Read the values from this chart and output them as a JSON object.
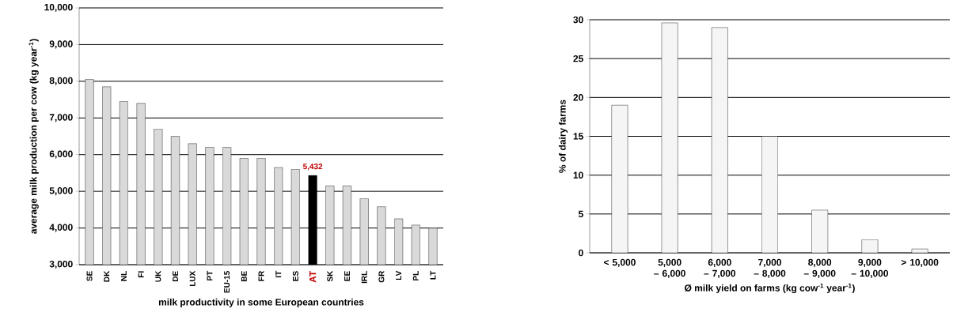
{
  "chart_data": [
    {
      "type": "bar",
      "xlabel": "milk productivity in some European countries",
      "ylabel": "average milk production per cow (kg year$^{-1}$)",
      "categories": [
        "SE",
        "DK",
        "NL",
        "FI",
        "UK",
        "DE",
        "LUX",
        "PT",
        "EU-15",
        "BE",
        "FR",
        "IT",
        "ES",
        "AT",
        "SK",
        "EE",
        "IRL",
        "GR",
        "LV",
        "PL",
        "LT"
      ],
      "values": [
        8050,
        7850,
        7450,
        7400,
        6700,
        6500,
        6300,
        6200,
        6200,
        5900,
        5900,
        5650,
        5600,
        5432,
        5150,
        5150,
        4800,
        4580,
        4250,
        4080,
        4000
      ],
      "colors": [
        "#d9d9d9",
        "#d9d9d9",
        "#d9d9d9",
        "#d9d9d9",
        "#d9d9d9",
        "#d9d9d9",
        "#d9d9d9",
        "#d9d9d9",
        "#d9d9d9",
        "#d9d9d9",
        "#d9d9d9",
        "#d9d9d9",
        "#d9d9d9",
        "#000000",
        "#d9d9d9",
        "#d9d9d9",
        "#d9d9d9",
        "#d9d9d9",
        "#d9d9d9",
        "#d9d9d9",
        "#d9d9d9"
      ],
      "value_labels": [
        null,
        null,
        null,
        null,
        null,
        null,
        null,
        null,
        null,
        null,
        null,
        null,
        null,
        "5,432",
        null,
        null,
        null,
        null,
        null,
        null,
        null
      ],
      "ylim": [
        3000,
        10000
      ],
      "yticks": [
        {
          "value": 3000,
          "label": "3,000"
        },
        {
          "value": 4000,
          "label": "4,000"
        },
        {
          "value": 5000,
          "label": "5,000"
        },
        {
          "value": 6000,
          "label": "6,000"
        },
        {
          "value": 7000,
          "label": "7,000"
        },
        {
          "value": 8000,
          "label": "8,000"
        },
        {
          "value": 9000,
          "label": "9,000"
        },
        {
          "value": 10000,
          "label": "10,000"
        }
      ],
      "grid": "y"
    },
    {
      "type": "bar",
      "xlabel": "Ø milk yield on farms (kg cow$^{-1}$ year$^{-1}$)",
      "ylabel": "% of dairy farms",
      "categories": [
        "< 5,000",
        "5,000 – 6,000",
        "6,000 – 7,000",
        "7,000 – 8,000",
        "8,000 – 9,000",
        "9,000 – 10,000",
        "> 10,000"
      ],
      "values": [
        19,
        29.6,
        29,
        15,
        5.5,
        1.7,
        0.5
      ],
      "colors": [
        "#f5f5f5",
        "#f5f5f5",
        "#f5f5f5",
        "#f5f5f5",
        "#f5f5f5",
        "#f5f5f5",
        "#f5f5f5"
      ],
      "ylim": [
        0,
        30
      ],
      "yticks": [
        0,
        5,
        10,
        15,
        20,
        25,
        30
      ],
      "grid": "y"
    }
  ]
}
